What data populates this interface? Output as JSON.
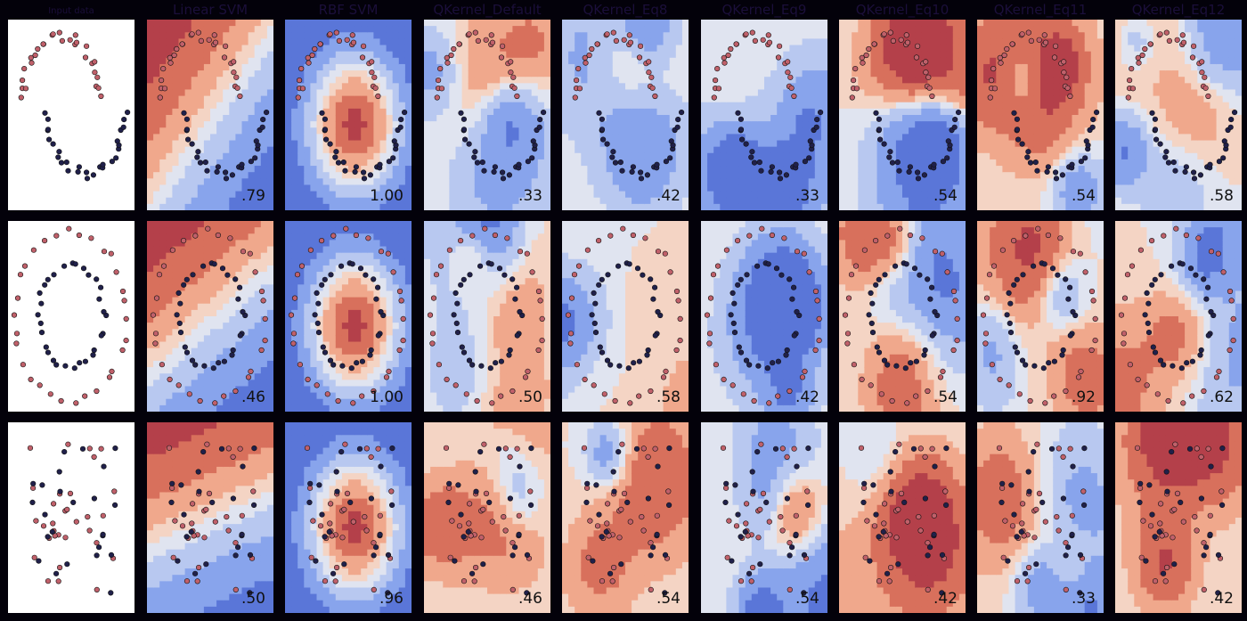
{
  "chart_data": {
    "type": "scatter",
    "description_kind": "grid of classifier decision-boundary plots",
    "columns": [
      "Input data",
      "Linear SVM",
      "RBF SVM",
      "QKernel_Default",
      "QKernel_Eq8",
      "QKernel_Eq9",
      "QKernel_Eq10",
      "QKernel_Eq11",
      "QKernel_Eq12"
    ],
    "rows": [
      {
        "scores": [
          ".79",
          "1.00",
          ".33",
          ".42",
          ".33",
          ".54",
          ".54",
          ".58"
        ]
      },
      {
        "scores": [
          ".46",
          "1.00",
          ".50",
          ".58",
          ".42",
          ".54",
          ".92",
          ".62"
        ]
      },
      {
        "scores": [
          ".50",
          ".96",
          ".46",
          ".54",
          ".54",
          ".42",
          ".33",
          ".42"
        ]
      }
    ],
    "colors": {
      "class_a": "#c0606a",
      "class_b": "#20204a",
      "contour_red": [
        "#b4404a",
        "#d8705c",
        "#f0a88c",
        "#f4d4c4"
      ],
      "contour_blue": [
        "#e0e4f0",
        "#b8c8f0",
        "#88a4ec",
        "#5a76d8"
      ]
    },
    "grid": false,
    "legend": "none"
  }
}
